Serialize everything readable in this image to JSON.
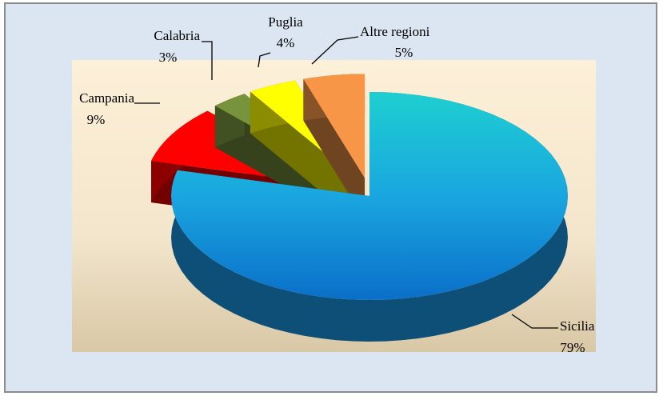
{
  "chart_data": {
    "type": "pie3d",
    "categories": [
      "Sicilia",
      "Campania",
      "Calabria",
      "Puglia",
      "Altre regioni"
    ],
    "values": [
      79,
      9,
      3,
      4,
      5
    ],
    "value_labels": [
      "79%",
      "9%",
      "3%",
      "4%",
      "5%"
    ],
    "colors": [
      "#1a8fd8",
      "#ff0000",
      "#77933c",
      "#ffff00",
      "#f79646"
    ]
  }
}
